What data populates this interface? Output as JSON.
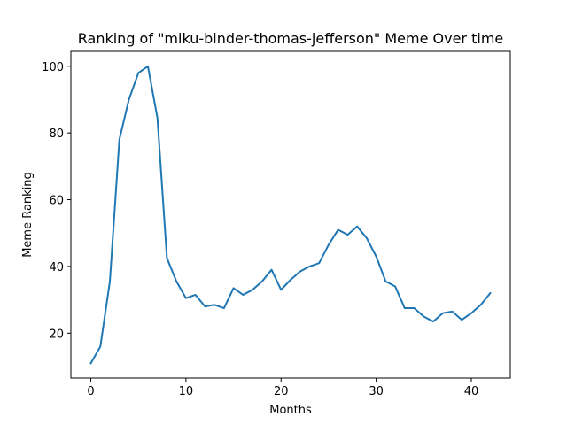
{
  "chart_data": {
    "type": "line",
    "title": "Ranking of \"miku-binder-thomas-jefferson\" Meme Over time",
    "xlabel": "Months",
    "ylabel": "Meme Ranking",
    "xlim": [
      -2.1,
      44.1
    ],
    "ylim": [
      6.55,
      104.45
    ],
    "xticks": [
      0,
      10,
      20,
      30,
      40
    ],
    "yticks": [
      20,
      40,
      60,
      80,
      100
    ],
    "grid": false,
    "series": [
      {
        "name": "ranking",
        "color": "#1f77b4",
        "x": [
          0,
          1,
          2,
          3,
          4,
          5,
          6,
          7,
          8,
          9,
          10,
          11,
          12,
          13,
          14,
          15,
          16,
          17,
          18,
          19,
          20,
          21,
          22,
          23,
          24,
          25,
          26,
          27,
          28,
          29,
          30,
          31,
          32,
          33,
          34,
          35,
          36,
          37,
          38,
          39,
          40,
          41,
          42
        ],
        "values": [
          11,
          16,
          35.5,
          78,
          90,
          98,
          100,
          84.5,
          42.5,
          35.5,
          30.5,
          31.5,
          28,
          28.5,
          27.5,
          33.5,
          31.5,
          33,
          35.5,
          39,
          33,
          36,
          38.5,
          40,
          41,
          46.5,
          51,
          49.5,
          52,
          48.5,
          43,
          35.5,
          34,
          27.5,
          27.5,
          25,
          23.5,
          26,
          26.5,
          24,
          26,
          28.5,
          32
        ]
      }
    ]
  }
}
